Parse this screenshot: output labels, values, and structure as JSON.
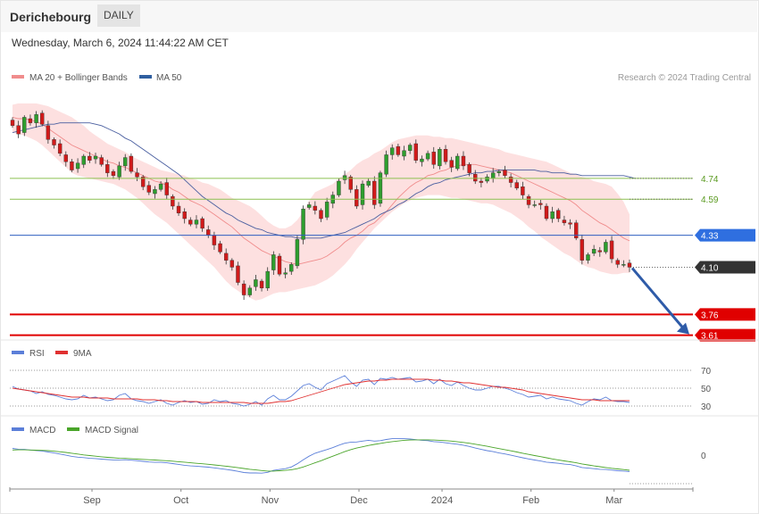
{
  "header": {
    "title": "Derichebourg",
    "interval": "DAILY",
    "datetime": "Wednesday, March 6, 2024 11:44:22 AM CET"
  },
  "colors": {
    "up": "#2e9e2e",
    "down": "#d11a1a",
    "ma20": "#f08c8c",
    "bands": "#fde0e0",
    "ma50": "#4a5fa0",
    "support": "#e00000",
    "resistance_green": "#8cc050",
    "pivot_blue": "#2f5fc0",
    "price_tag": "#333333",
    "rsi": "#5b7fd9",
    "rsi_ma": "#e03030",
    "macd": "#5b7fd9",
    "macd_signal": "#4aa52a"
  },
  "chart_data": [
    {
      "type": "candlestick",
      "name": "price",
      "legend": [
        {
          "label": "MA 20 + Bollinger Bands",
          "color": "#f08c8c"
        },
        {
          "label": "MA 50",
          "color": "#2f5fa0"
        }
      ],
      "credit": "Research © 2024 Trading Central",
      "x_ticks": [
        "Sep",
        "Oct",
        "Nov",
        "Dec",
        "2024",
        "Feb",
        "Mar"
      ],
      "y_range": [
        3.55,
        5.35
      ],
      "levels": [
        {
          "label": "4.74",
          "value": 4.74,
          "style": "green"
        },
        {
          "label": "4.59",
          "value": 4.59,
          "style": "green"
        },
        {
          "label": "4.33",
          "value": 4.33,
          "style": "blue"
        },
        {
          "label": "4.10",
          "value": 4.1,
          "style": "last"
        },
        {
          "label": "3.76",
          "value": 3.76,
          "style": "red"
        },
        {
          "label": "3.61",
          "value": 3.61,
          "style": "red"
        }
      ],
      "forecast_arrow": {
        "from": 4.1,
        "to": 3.61
      },
      "closes": [
        5.12,
        5.06,
        5.18,
        5.14,
        5.2,
        5.13,
        5.02,
        4.98,
        4.92,
        4.86,
        4.8,
        4.85,
        4.9,
        4.87,
        4.9,
        4.84,
        4.78,
        4.76,
        4.83,
        4.89,
        4.79,
        4.75,
        4.68,
        4.64,
        4.66,
        4.7,
        4.62,
        4.54,
        4.49,
        4.45,
        4.41,
        4.44,
        4.38,
        4.33,
        4.26,
        4.21,
        4.15,
        4.1,
        3.99,
        3.9,
        3.95,
        4.01,
        3.95,
        4.07,
        4.19,
        4.05,
        4.06,
        4.12,
        4.3,
        4.52,
        4.55,
        4.51,
        4.45,
        4.57,
        4.62,
        4.72,
        4.76,
        4.66,
        4.54,
        4.7,
        4.72,
        4.55,
        4.78,
        4.91,
        4.96,
        4.91,
        4.94,
        4.98,
        4.87,
        4.88,
        4.92,
        4.84,
        4.95,
        4.86,
        4.82,
        4.9,
        4.83,
        4.78,
        4.72,
        4.71,
        4.75,
        4.78,
        4.79,
        4.76,
        4.71,
        4.67,
        4.62,
        4.55,
        4.55,
        4.55,
        4.45,
        4.5,
        4.45,
        4.42,
        4.41,
        4.31,
        4.15,
        4.19,
        4.23,
        4.21,
        4.28,
        4.16,
        4.12,
        4.12,
        4.1
      ],
      "ma20": [
        5.18,
        5.17,
        5.17,
        5.16,
        5.15,
        5.13,
        5.1,
        5.07,
        5.04,
        5.01,
        4.98,
        4.96,
        4.94,
        4.92,
        4.9,
        4.88,
        4.86,
        4.85,
        4.83,
        4.82,
        4.8,
        4.78,
        4.76,
        4.74,
        4.72,
        4.71,
        4.69,
        4.66,
        4.64,
        4.61,
        4.58,
        4.56,
        4.54,
        4.51,
        4.48,
        4.45,
        4.42,
        4.39,
        4.35,
        4.31,
        4.28,
        4.25,
        4.22,
        4.2,
        4.18,
        4.16,
        4.14,
        4.13,
        4.12,
        4.13,
        4.14,
        4.15,
        4.16,
        4.18,
        4.21,
        4.24,
        4.28,
        4.31,
        4.33,
        4.36,
        4.4,
        4.42,
        4.46,
        4.5,
        4.55,
        4.6,
        4.64,
        4.68,
        4.71,
        4.73,
        4.76,
        4.77,
        4.79,
        4.8,
        4.82,
        4.83,
        4.84,
        4.84,
        4.84,
        4.83,
        4.82,
        4.81,
        4.8,
        4.79,
        4.78,
        4.76,
        4.74,
        4.72,
        4.7,
        4.68,
        4.66,
        4.64,
        4.62,
        4.6,
        4.58,
        4.55,
        4.51,
        4.48,
        4.45,
        4.42,
        4.4,
        4.37,
        4.34,
        4.31,
        4.29
      ],
      "upper_band": [
        5.27,
        5.28,
        5.28,
        5.28,
        5.28,
        5.27,
        5.26,
        5.24,
        5.22,
        5.2,
        5.18,
        5.15,
        5.12,
        5.08,
        5.05,
        5.02,
        4.99,
        4.97,
        4.95,
        4.93,
        4.9,
        4.88,
        4.86,
        4.84,
        4.82,
        4.8,
        4.79,
        4.78,
        4.77,
        4.76,
        4.74,
        4.73,
        4.71,
        4.7,
        4.68,
        4.66,
        4.63,
        4.6,
        4.58,
        4.56,
        4.54,
        4.51,
        4.47,
        4.43,
        4.4,
        4.38,
        4.38,
        4.4,
        4.44,
        4.5,
        4.58,
        4.64,
        4.66,
        4.68,
        4.7,
        4.74,
        4.77,
        4.8,
        4.84,
        4.87,
        4.89,
        4.92,
        4.94,
        4.97,
        5.0,
        5.02,
        5.03,
        5.04,
        5.05,
        5.05,
        5.05,
        5.04,
        5.04,
        5.03,
        5.03,
        5.02,
        5.01,
        5.0,
        4.99,
        4.98,
        4.97,
        4.96,
        4.95,
        4.93,
        4.92,
        4.91,
        4.9,
        4.89,
        4.88,
        4.87,
        4.86,
        4.84,
        4.82,
        4.8,
        4.78,
        4.77,
        4.75,
        4.74,
        4.72,
        4.71,
        4.7,
        4.68,
        4.63,
        4.57,
        4.48
      ],
      "lower_band": [
        5.07,
        5.06,
        5.05,
        5.03,
        5.01,
        4.98,
        4.94,
        4.9,
        4.86,
        4.82,
        4.78,
        4.76,
        4.75,
        4.74,
        4.73,
        4.72,
        4.71,
        4.7,
        4.68,
        4.66,
        4.63,
        4.6,
        4.56,
        4.52,
        4.48,
        4.45,
        4.42,
        4.38,
        4.34,
        4.3,
        4.26,
        4.22,
        4.18,
        4.14,
        4.1,
        4.05,
        4.0,
        3.96,
        3.93,
        3.9,
        3.88,
        3.86,
        3.87,
        3.89,
        3.91,
        3.92,
        3.92,
        3.93,
        3.94,
        3.95,
        3.96,
        3.97,
        3.99,
        4.01,
        4.04,
        4.08,
        4.12,
        4.17,
        4.23,
        4.28,
        4.33,
        4.38,
        4.42,
        4.46,
        4.5,
        4.53,
        4.56,
        4.58,
        4.6,
        4.61,
        4.62,
        4.62,
        4.62,
        4.61,
        4.6,
        4.6,
        4.59,
        4.58,
        4.57,
        4.56,
        4.56,
        4.55,
        4.53,
        4.51,
        4.49,
        4.46,
        4.43,
        4.39,
        4.36,
        4.32,
        4.29,
        4.26,
        4.23,
        4.2,
        4.18,
        4.15,
        4.12,
        4.1,
        4.09,
        4.07,
        4.06,
        4.05,
        4.05,
        4.06,
        4.06
      ],
      "ma50": [
        5.07,
        5.08,
        5.09,
        5.1,
        5.11,
        5.12,
        5.13,
        5.13,
        5.14,
        5.14,
        5.14,
        5.14,
        5.14,
        5.14,
        5.13,
        5.12,
        5.1,
        5.08,
        5.06,
        5.03,
        5.01,
        4.98,
        4.95,
        4.92,
        4.89,
        4.86,
        4.83,
        4.8,
        4.77,
        4.73,
        4.69,
        4.65,
        4.61,
        4.58,
        4.55,
        4.52,
        4.49,
        4.47,
        4.44,
        4.42,
        4.4,
        4.38,
        4.37,
        4.35,
        4.34,
        4.33,
        4.32,
        4.32,
        4.31,
        4.31,
        4.31,
        4.31,
        4.31,
        4.32,
        4.33,
        4.34,
        4.35,
        4.37,
        4.39,
        4.41,
        4.43,
        4.45,
        4.48,
        4.5,
        4.52,
        4.55,
        4.57,
        4.6,
        4.63,
        4.65,
        4.68,
        4.7,
        4.71,
        4.73,
        4.74,
        4.75,
        4.76,
        4.77,
        4.78,
        4.78,
        4.79,
        4.79,
        4.8,
        4.8,
        4.8,
        4.8,
        4.8,
        4.8,
        4.8,
        4.79,
        4.79,
        4.78,
        4.78,
        4.78,
        4.77,
        4.77,
        4.76,
        4.76,
        4.76,
        4.76,
        4.76,
        4.76,
        4.76,
        4.76,
        4.75,
        4.74
      ]
    },
    {
      "type": "line",
      "name": "rsi-panel",
      "legend": [
        {
          "label": "RSI",
          "color": "#5b7fd9"
        },
        {
          "label": "9MA",
          "color": "#e03030"
        }
      ],
      "y_range": [
        22,
        80
      ],
      "ticks": [
        {
          "label": "70",
          "value": 70
        },
        {
          "label": "50",
          "value": 50
        },
        {
          "label": "30",
          "value": 30
        }
      ],
      "series": [
        {
          "name": "RSI",
          "values": [
            52,
            49,
            48,
            47,
            44,
            46,
            43,
            42,
            40,
            38,
            37,
            38,
            42,
            39,
            40,
            38,
            36,
            37,
            42,
            44,
            38,
            36,
            35,
            33,
            35,
            37,
            33,
            31,
            34,
            36,
            34,
            35,
            32,
            33,
            37,
            35,
            36,
            33,
            32,
            30,
            32,
            35,
            31,
            38,
            42,
            37,
            37,
            41,
            47,
            53,
            55,
            51,
            48,
            55,
            58,
            61,
            64,
            57,
            52,
            59,
            60,
            54,
            61,
            60,
            62,
            60,
            61,
            62,
            57,
            58,
            60,
            55,
            60,
            55,
            53,
            57,
            53,
            50,
            48,
            48,
            50,
            52,
            52,
            50,
            48,
            45,
            43,
            40,
            41,
            42,
            38,
            40,
            38,
            37,
            36,
            33,
            31,
            35,
            38,
            37,
            40,
            36,
            35,
            35,
            34
          ]
        },
        {
          "name": "9MA",
          "values": [
            50,
            49,
            48,
            47,
            46,
            45,
            44,
            43,
            42,
            41,
            40,
            40,
            40,
            39,
            39,
            39,
            39,
            38,
            38,
            38,
            38,
            38,
            37,
            37,
            37,
            36,
            36,
            35,
            35,
            35,
            35,
            35,
            34,
            34,
            34,
            34,
            34,
            34,
            34,
            34,
            33,
            33,
            33,
            33,
            34,
            35,
            35,
            36,
            38,
            40,
            42,
            44,
            46,
            48,
            50,
            52,
            54,
            55,
            56,
            57,
            58,
            58,
            59,
            59,
            60,
            60,
            60,
            60,
            60,
            60,
            60,
            59,
            59,
            58,
            58,
            57,
            56,
            56,
            55,
            54,
            53,
            52,
            51,
            51,
            50,
            49,
            48,
            46,
            45,
            44,
            43,
            42,
            41,
            40,
            39,
            38,
            37,
            37,
            37,
            36,
            36,
            36,
            36,
            36,
            36
          ]
        }
      ]
    },
    {
      "type": "line",
      "name": "macd-panel",
      "legend": [
        {
          "label": "MACD",
          "color": "#5b7fd9"
        },
        {
          "label": "MACD Signal",
          "color": "#4aa52a"
        }
      ],
      "y_range": [
        -0.2,
        0.12
      ],
      "ticks": [
        {
          "label": "0",
          "value": 0
        }
      ],
      "series": [
        {
          "name": "MACD",
          "values": [
            0.04,
            0.035,
            0.034,
            0.03,
            0.027,
            0.024,
            0.018,
            0.012,
            0.005,
            -0.002,
            -0.009,
            -0.014,
            -0.017,
            -0.021,
            -0.023,
            -0.026,
            -0.029,
            -0.031,
            -0.031,
            -0.03,
            -0.033,
            -0.036,
            -0.04,
            -0.044,
            -0.046,
            -0.046,
            -0.049,
            -0.054,
            -0.059,
            -0.064,
            -0.068,
            -0.07,
            -0.073,
            -0.076,
            -0.08,
            -0.085,
            -0.09,
            -0.095,
            -0.102,
            -0.109,
            -0.112,
            -0.112,
            -0.113,
            -0.108,
            -0.096,
            -0.09,
            -0.085,
            -0.075,
            -0.055,
            -0.03,
            -0.008,
            0.01,
            0.022,
            0.033,
            0.045,
            0.06,
            0.072,
            0.078,
            0.08,
            0.085,
            0.09,
            0.085,
            0.088,
            0.095,
            0.1,
            0.1,
            0.1,
            0.098,
            0.094,
            0.09,
            0.088,
            0.082,
            0.08,
            0.075,
            0.07,
            0.066,
            0.06,
            0.052,
            0.042,
            0.034,
            0.026,
            0.02,
            0.012,
            0.006,
            -0.002,
            -0.01,
            -0.018,
            -0.025,
            -0.032,
            -0.038,
            -0.045,
            -0.048,
            -0.052,
            -0.057,
            -0.06,
            -0.068,
            -0.078,
            -0.082,
            -0.085,
            -0.089,
            -0.09,
            -0.094,
            -0.098,
            -0.1,
            -0.103
          ]
        },
        {
          "name": "MACD Signal",
          "values": [
            0.03,
            0.031,
            0.031,
            0.03,
            0.029,
            0.028,
            0.026,
            0.023,
            0.019,
            0.015,
            0.01,
            0.005,
            0.0,
            -0.004,
            -0.008,
            -0.012,
            -0.015,
            -0.018,
            -0.021,
            -0.022,
            -0.024,
            -0.026,
            -0.028,
            -0.03,
            -0.032,
            -0.034,
            -0.036,
            -0.039,
            -0.042,
            -0.045,
            -0.049,
            -0.052,
            -0.055,
            -0.058,
            -0.062,
            -0.066,
            -0.07,
            -0.074,
            -0.079,
            -0.084,
            -0.089,
            -0.093,
            -0.097,
            -0.1,
            -0.1,
            -0.098,
            -0.096,
            -0.092,
            -0.085,
            -0.075,
            -0.062,
            -0.049,
            -0.036,
            -0.022,
            -0.008,
            0.006,
            0.02,
            0.032,
            0.042,
            0.05,
            0.058,
            0.065,
            0.071,
            0.077,
            0.082,
            0.086,
            0.09,
            0.092,
            0.093,
            0.093,
            0.093,
            0.092,
            0.09,
            0.088,
            0.085,
            0.081,
            0.077,
            0.072,
            0.066,
            0.06,
            0.053,
            0.046,
            0.039,
            0.032,
            0.025,
            0.018,
            0.01,
            0.003,
            -0.004,
            -0.011,
            -0.018,
            -0.025,
            -0.031,
            -0.037,
            -0.043,
            -0.049,
            -0.056,
            -0.062,
            -0.068,
            -0.073,
            -0.078,
            -0.083,
            -0.087,
            -0.091,
            -0.095
          ]
        }
      ]
    }
  ]
}
